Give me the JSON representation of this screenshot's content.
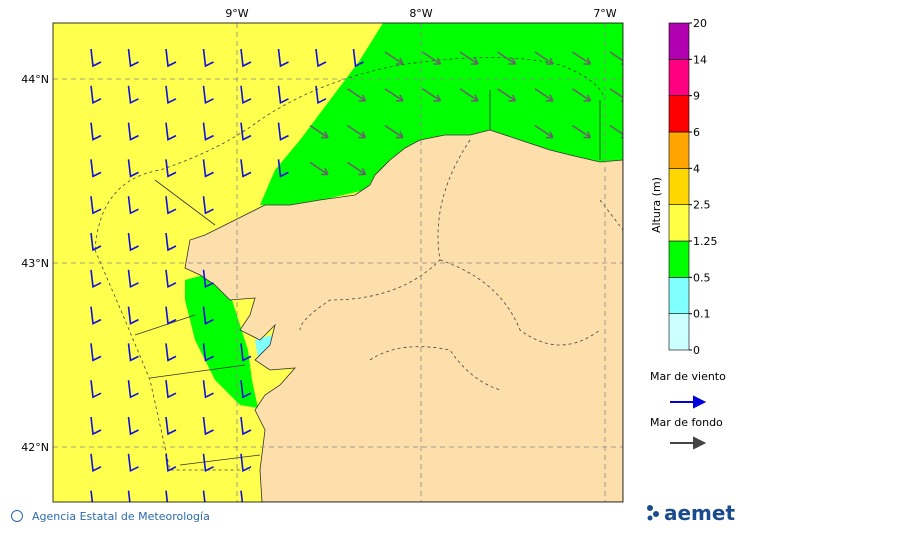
{
  "map": {
    "lon_labels": [
      "9°W",
      "8°W",
      "7°W"
    ],
    "lat_labels": [
      "44°N",
      "43°N",
      "42°N"
    ]
  },
  "colorbar": {
    "title": "Altura (m)",
    "ticks": [
      0,
      0.1,
      0.5,
      1.25,
      2.5,
      4,
      6,
      9,
      14,
      20
    ],
    "colors": [
      "#ccffff",
      "#80ffff",
      "#00ff00",
      "#ffff44",
      "#ffd700",
      "#ffa500",
      "#ff0000",
      "#ff0080",
      "#b000b0"
    ]
  },
  "legend": {
    "wind_sea": "Mar de viento",
    "swell": "Mar de fondo"
  },
  "footer": {
    "credit": "Agencia Estatal de Meteorología",
    "logo": "aemet"
  }
}
